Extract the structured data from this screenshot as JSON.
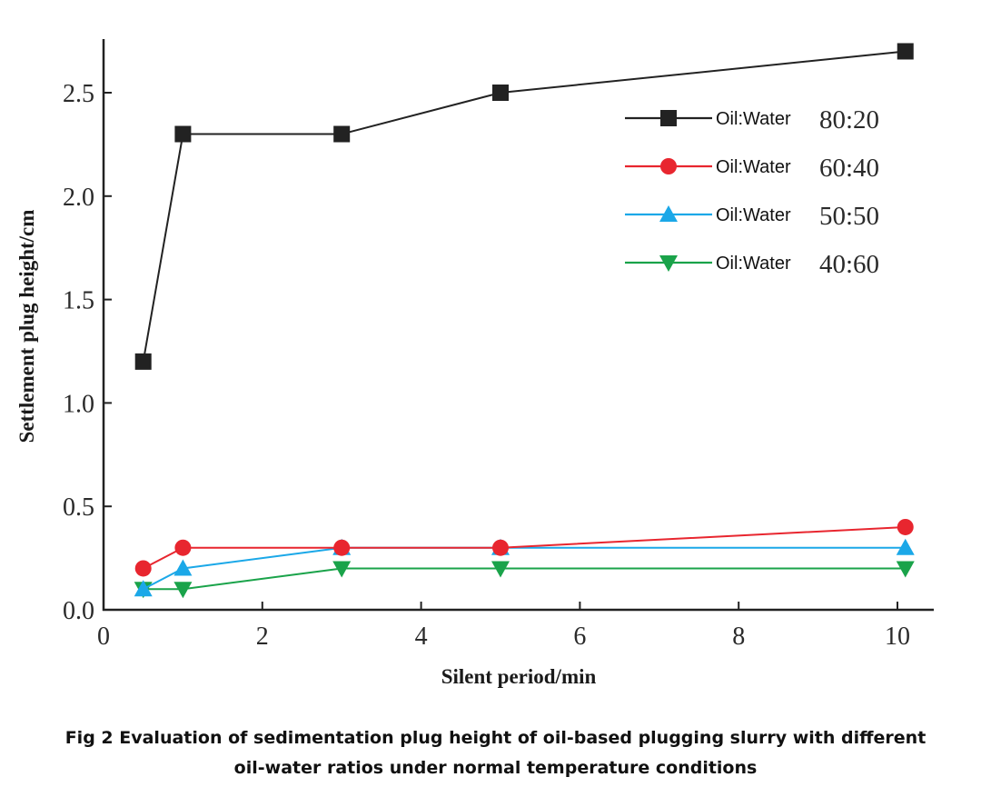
{
  "chart_data": {
    "type": "line",
    "xlabel": "Silent period/min",
    "ylabel": "Settlement plug height/cm",
    "xlim": [
      0,
      10.5
    ],
    "ylim": [
      0,
      2.8
    ],
    "xticks": [
      0,
      2,
      4,
      6,
      8,
      10
    ],
    "yticks": [
      0.0,
      0.5,
      1.0,
      1.5,
      2.0,
      2.5
    ],
    "xtick_labels": [
      "0",
      "2",
      "4",
      "6",
      "8",
      "10"
    ],
    "ytick_labels": [
      "0.0",
      "0.5",
      "1.0",
      "1.5",
      "2.0",
      "2.5"
    ],
    "grid": false,
    "legend_position": "top-right",
    "series": [
      {
        "name": "Oil:Water 80:20",
        "legend_prefix": "Oil:Water",
        "legend_ratio": "80:20",
        "color": "#222222",
        "marker": "square",
        "x": [
          0.5,
          1,
          3,
          5,
          10.1
        ],
        "y": [
          1.2,
          2.3,
          2.3,
          2.5,
          2.7
        ]
      },
      {
        "name": "Oil:Water 60:40",
        "legend_prefix": "Oil:Water",
        "legend_ratio": "60:40",
        "color": "#e8262f",
        "marker": "circle",
        "x": [
          0.5,
          1,
          3,
          5,
          10.1
        ],
        "y": [
          0.2,
          0.3,
          0.3,
          0.3,
          0.4
        ]
      },
      {
        "name": "Oil:Water 50:50",
        "legend_prefix": "Oil:Water",
        "legend_ratio": "50:50",
        "color": "#1ba8e8",
        "marker": "triangle-up",
        "x": [
          0.5,
          1,
          3,
          5,
          10.1
        ],
        "y": [
          0.1,
          0.2,
          0.3,
          0.3,
          0.3
        ]
      },
      {
        "name": "Oil:Water 40:60",
        "legend_prefix": "Oil:Water",
        "legend_ratio": "40:60",
        "color": "#1aa34a",
        "marker": "triangle-down",
        "x": [
          0.5,
          1,
          3,
          5,
          10.1
        ],
        "y": [
          0.1,
          0.1,
          0.2,
          0.2,
          0.2
        ]
      }
    ]
  },
  "caption": {
    "line1": "Fig 2 Evaluation of sedimentation plug height of oil-based plugging slurry with different",
    "line2": "oil-water ratios under normal temperature conditions"
  }
}
